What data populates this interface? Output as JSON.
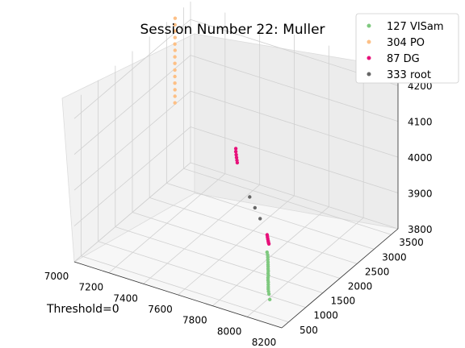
{
  "chart_data": {
    "type": "scatter",
    "projection": "3d",
    "title": "Session Number 22: Muller",
    "annotation": "Threshold=0",
    "xlabel": "",
    "ylabel": "",
    "zlabel": "",
    "xlim": [
      7000,
      8200
    ],
    "ylim": [
      300,
      3700
    ],
    "zlim": [
      3800,
      4250
    ],
    "x_ticks": [
      "7000",
      "7200",
      "7400",
      "7600",
      "7800",
      "8000",
      "8200"
    ],
    "y_ticks": [
      "500",
      "1000",
      "1500",
      "2000",
      "2500",
      "3000",
      "3500"
    ],
    "z_ticks": [
      "3800",
      "3900",
      "4000",
      "4100",
      "4200"
    ],
    "grid": true,
    "legend_position": "top-right",
    "series": [
      {
        "name": "127 VISam",
        "color": "#7fc97f",
        "points": [
          [
            7775,
            2020,
            3806
          ],
          [
            7790,
            1960,
            3806
          ],
          [
            7803,
            1900,
            3806
          ],
          [
            7815,
            1840,
            3806
          ],
          [
            7828,
            1780,
            3806
          ],
          [
            7840,
            1720,
            3806
          ],
          [
            7850,
            1670,
            3806
          ],
          [
            7862,
            1610,
            3806
          ],
          [
            7873,
            1560,
            3806
          ],
          [
            7884,
            1500,
            3806
          ],
          [
            7895,
            1450,
            3806
          ],
          [
            7905,
            1390,
            3806
          ],
          [
            7917,
            1330,
            3806
          ],
          [
            7928,
            1280,
            3806
          ],
          [
            7940,
            1220,
            3806
          ],
          [
            7952,
            1160,
            3806
          ],
          [
            7962,
            1110,
            3806
          ],
          [
            7975,
            1050,
            3806
          ],
          [
            7990,
            990,
            3806
          ],
          [
            8020,
            860,
            3806
          ]
        ]
      },
      {
        "name": "304 PO",
        "color": "#fdc086",
        "points": [
          [
            7000,
            3250,
            4240
          ],
          [
            7005,
            3220,
            4225
          ],
          [
            7010,
            3200,
            4210
          ],
          [
            7015,
            3170,
            4195
          ],
          [
            7020,
            3140,
            4180
          ],
          [
            7025,
            3120,
            4165
          ],
          [
            7030,
            3090,
            4150
          ],
          [
            7036,
            3060,
            4135
          ],
          [
            7042,
            3030,
            4120
          ],
          [
            7048,
            3000,
            4105
          ],
          [
            7054,
            2970,
            4090
          ],
          [
            7060,
            2940,
            4075
          ],
          [
            7066,
            2910,
            4060
          ],
          [
            7072,
            2880,
            4045
          ]
        ]
      },
      {
        "name": "87 DG",
        "color": "#e7117a",
        "points": [
          [
            7430,
            2850,
            3975
          ],
          [
            7440,
            2800,
            3972
          ],
          [
            7450,
            2760,
            3968
          ],
          [
            7460,
            2720,
            3965
          ],
          [
            7470,
            2680,
            3962
          ],
          [
            7480,
            2640,
            3960
          ],
          [
            7700,
            2400,
            3812
          ],
          [
            7708,
            2370,
            3810
          ],
          [
            7716,
            2340,
            3808
          ],
          [
            7724,
            2310,
            3806
          ],
          [
            7732,
            2280,
            3805
          ],
          [
            7740,
            2250,
            3805
          ]
        ]
      },
      {
        "name": "333 root",
        "color": "#666666",
        "points": [
          [
            7560,
            2600,
            3880
          ],
          [
            7600,
            2550,
            3860
          ],
          [
            7640,
            2500,
            3840
          ]
        ]
      }
    ]
  }
}
